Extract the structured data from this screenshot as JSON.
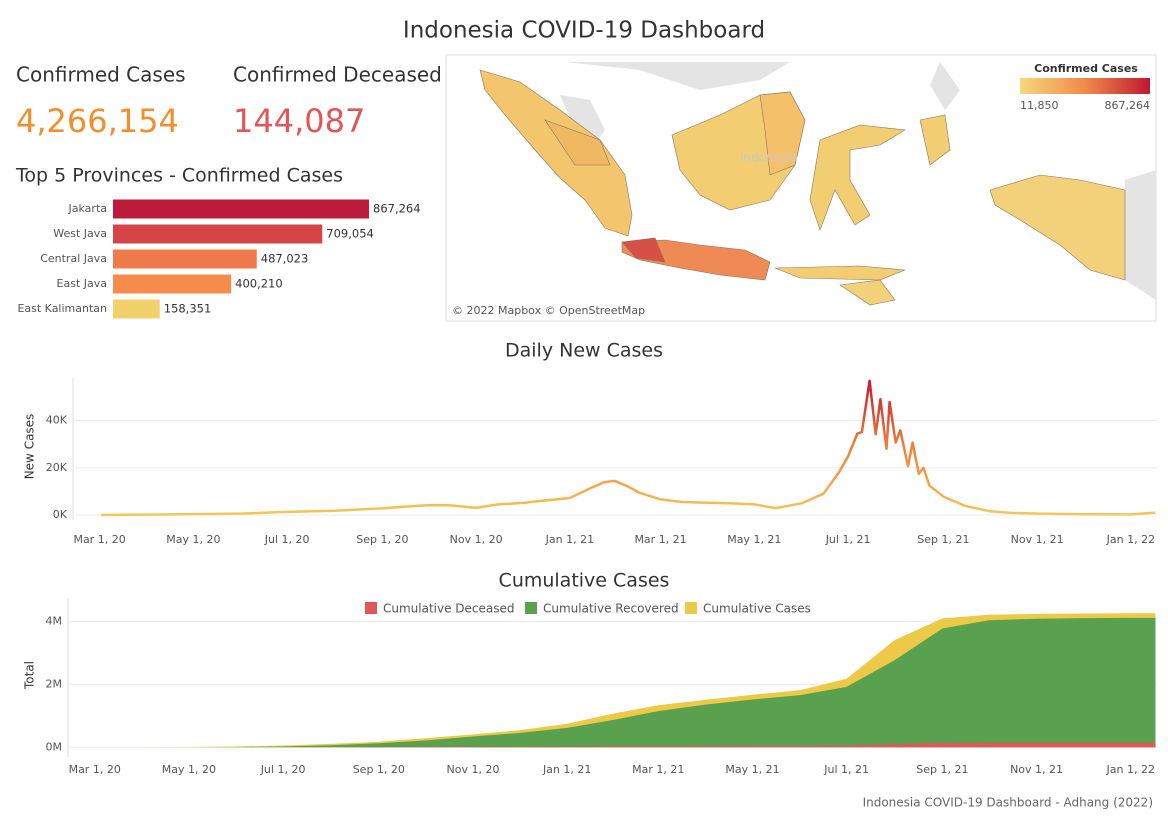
{
  "title": "Indonesia COVID-19 Dashboard",
  "kpis": [
    {
      "label": "Confirmed Cases",
      "value": "4,266,154",
      "color": "#f28e2b"
    },
    {
      "label": "Confirmed Deceased",
      "value": "144,087",
      "color": "#e15759"
    }
  ],
  "map": {
    "label": "Indonesia",
    "legend_title": "Confirmed Cases",
    "legend_min": "11,850",
    "legend_max": "867,264",
    "legend_colors": [
      "#f6d87e",
      "#f08a4b",
      "#c0182f"
    ],
    "credit": "© 2022 Mapbox © OpenStreetMap"
  },
  "chart_data": [
    {
      "type": "bar",
      "orientation": "horizontal",
      "title": "Top 5 Provinces - Confirmed Cases",
      "categories": [
        "Jakarta",
        "West Java",
        "Central Java",
        "East Java",
        "East Kalimantan"
      ],
      "values": [
        867264,
        709054,
        487023,
        400210,
        158351
      ],
      "value_labels": [
        "867,264",
        "709,054",
        "487,023",
        "400,210",
        "158,351"
      ],
      "colors": [
        "#bc1b3b",
        "#d64545",
        "#f07a4a",
        "#f58c4e",
        "#f2d06b"
      ]
    },
    {
      "type": "line",
      "title": "Daily New Cases",
      "y_label": "New Cases",
      "x": [
        "2020-03-02",
        "2020-04-01",
        "2020-05-01",
        "2020-06-01",
        "2020-07-01",
        "2020-08-01",
        "2020-09-01",
        "2020-09-15",
        "2020-10-01",
        "2020-10-15",
        "2020-11-01",
        "2020-11-15",
        "2020-12-01",
        "2020-12-15",
        "2021-01-01",
        "2021-01-15",
        "2021-01-23",
        "2021-01-30",
        "2021-02-08",
        "2021-02-15",
        "2021-03-01",
        "2021-03-15",
        "2021-04-01",
        "2021-04-15",
        "2021-05-01",
        "2021-05-15",
        "2021-06-01",
        "2021-06-15",
        "2021-06-25",
        "2021-07-01",
        "2021-07-07",
        "2021-07-10",
        "2021-07-15",
        "2021-07-19",
        "2021-07-22",
        "2021-07-26",
        "2021-07-28",
        "2021-08-01",
        "2021-08-04",
        "2021-08-09",
        "2021-08-12",
        "2021-08-16",
        "2021-08-19",
        "2021-08-23",
        "2021-09-01",
        "2021-09-15",
        "2021-10-01",
        "2021-10-15",
        "2021-11-01",
        "2021-12-01",
        "2022-01-01",
        "2022-01-17"
      ],
      "values": [
        2,
        150,
        400,
        600,
        1300,
        1800,
        2800,
        3500,
        4200,
        4100,
        3000,
        4500,
        5100,
        6100,
        7200,
        11500,
        13800,
        14500,
        12000,
        9500,
        6600,
        5500,
        5200,
        5000,
        4500,
        2900,
        5000,
        9000,
        18000,
        24800,
        34400,
        35100,
        56800,
        34200,
        49000,
        28000,
        47800,
        30700,
        35800,
        20700,
        30600,
        17400,
        20000,
        12400,
        7800,
        3900,
        1600,
        900,
        600,
        300,
        250,
        1000
      ],
      "color_scale": [
        "#f2c85b",
        "#f0803c",
        "#c0182f"
      ],
      "xlim": [
        "2020-02-14",
        "2022-01-18"
      ],
      "xticks": [
        {
          "value": "2020-03-01",
          "label": "Mar 1, 20"
        },
        {
          "value": "2020-05-01",
          "label": "May 1, 20"
        },
        {
          "value": "2020-07-01",
          "label": "Jul 1, 20"
        },
        {
          "value": "2020-09-01",
          "label": "Sep 1, 20"
        },
        {
          "value": "2020-11-01",
          "label": "Nov 1, 20"
        },
        {
          "value": "2021-01-01",
          "label": "Jan 1, 21"
        },
        {
          "value": "2021-03-01",
          "label": "Mar 1, 21"
        },
        {
          "value": "2021-05-01",
          "label": "May 1, 21"
        },
        {
          "value": "2021-07-01",
          "label": "Jul 1, 21"
        },
        {
          "value": "2021-09-01",
          "label": "Sep 1, 21"
        },
        {
          "value": "2021-11-01",
          "label": "Nov 1, 21"
        },
        {
          "value": "2022-01-01",
          "label": "Jan 1, 22"
        }
      ],
      "ylim": [
        0,
        58000
      ],
      "yticks": [
        {
          "value": 0,
          "label": "0K"
        },
        {
          "value": 20000,
          "label": "20K"
        },
        {
          "value": 40000,
          "label": "40K"
        }
      ],
      "grid": true
    },
    {
      "type": "area",
      "title": "Cumulative Cases",
      "y_label": "Total",
      "x": [
        "2020-03-02",
        "2020-04-01",
        "2020-05-01",
        "2020-06-01",
        "2020-07-01",
        "2020-08-01",
        "2020-09-01",
        "2020-10-01",
        "2020-11-01",
        "2020-12-01",
        "2021-01-01",
        "2021-02-01",
        "2021-03-01",
        "2021-04-01",
        "2021-05-01",
        "2021-06-01",
        "2021-07-01",
        "2021-08-01",
        "2021-09-01",
        "2021-10-01",
        "2021-11-01",
        "2021-12-01",
        "2022-01-01",
        "2022-01-17"
      ],
      "series": [
        {
          "name": "Cumulative Cases",
          "color": "#edc948",
          "values": [
            2,
            1700,
            10500,
            27000,
            57000,
            109000,
            177000,
            288000,
            411000,
            544000,
            751000,
            1080000,
            1340000,
            1510000,
            1670000,
            1820000,
            2180000,
            3410000,
            4100000,
            4220000,
            4245000,
            4256000,
            4263000,
            4266154
          ]
        },
        {
          "name": "Cumulative Recovered",
          "color": "#59a14f",
          "values": [
            0,
            100,
            2000,
            8000,
            25000,
            67000,
            128000,
            215000,
            342000,
            455000,
            618000,
            880000,
            1150000,
            1360000,
            1520000,
            1660000,
            1920000,
            2770000,
            3780000,
            4040000,
            4090000,
            4110000,
            4116000,
            4118000
          ]
        },
        {
          "name": "Cumulative Deceased",
          "color": "#e15759",
          "values": [
            0,
            150,
            800,
            1600,
            2900,
            5100,
            7500,
            10700,
            13900,
            17000,
            22000,
            30000,
            36000,
            41000,
            46000,
            51000,
            58000,
            96000,
            134000,
            142000,
            143500,
            143900,
            144000,
            144087
          ]
        }
      ],
      "legend_order": [
        2,
        1,
        0
      ],
      "xlim": [
        "2020-02-14",
        "2022-01-18"
      ],
      "xticks": [
        {
          "value": "2020-03-01",
          "label": "Mar 1, 20"
        },
        {
          "value": "2020-05-01",
          "label": "May 1, 20"
        },
        {
          "value": "2020-07-01",
          "label": "Jul 1, 20"
        },
        {
          "value": "2020-09-01",
          "label": "Sep 1, 20"
        },
        {
          "value": "2020-11-01",
          "label": "Nov 1, 20"
        },
        {
          "value": "2021-01-01",
          "label": "Jan 1, 21"
        },
        {
          "value": "2021-03-01",
          "label": "Mar 1, 21"
        },
        {
          "value": "2021-05-01",
          "label": "May 1, 21"
        },
        {
          "value": "2021-07-01",
          "label": "Jul 1, 21"
        },
        {
          "value": "2021-09-01",
          "label": "Sep 1, 21"
        },
        {
          "value": "2021-11-01",
          "label": "Nov 1, 21"
        },
        {
          "value": "2022-01-01",
          "label": "Jan 1, 22"
        }
      ],
      "ylim": [
        -150000,
        4750000
      ],
      "yticks": [
        {
          "value": 0,
          "label": "0M"
        },
        {
          "value": 2000000,
          "label": "2M"
        },
        {
          "value": 4000000,
          "label": "4M"
        }
      ],
      "grid": true
    }
  ],
  "footer": "Indonesia COVID-19 Dashboard - Adhang (2022)"
}
